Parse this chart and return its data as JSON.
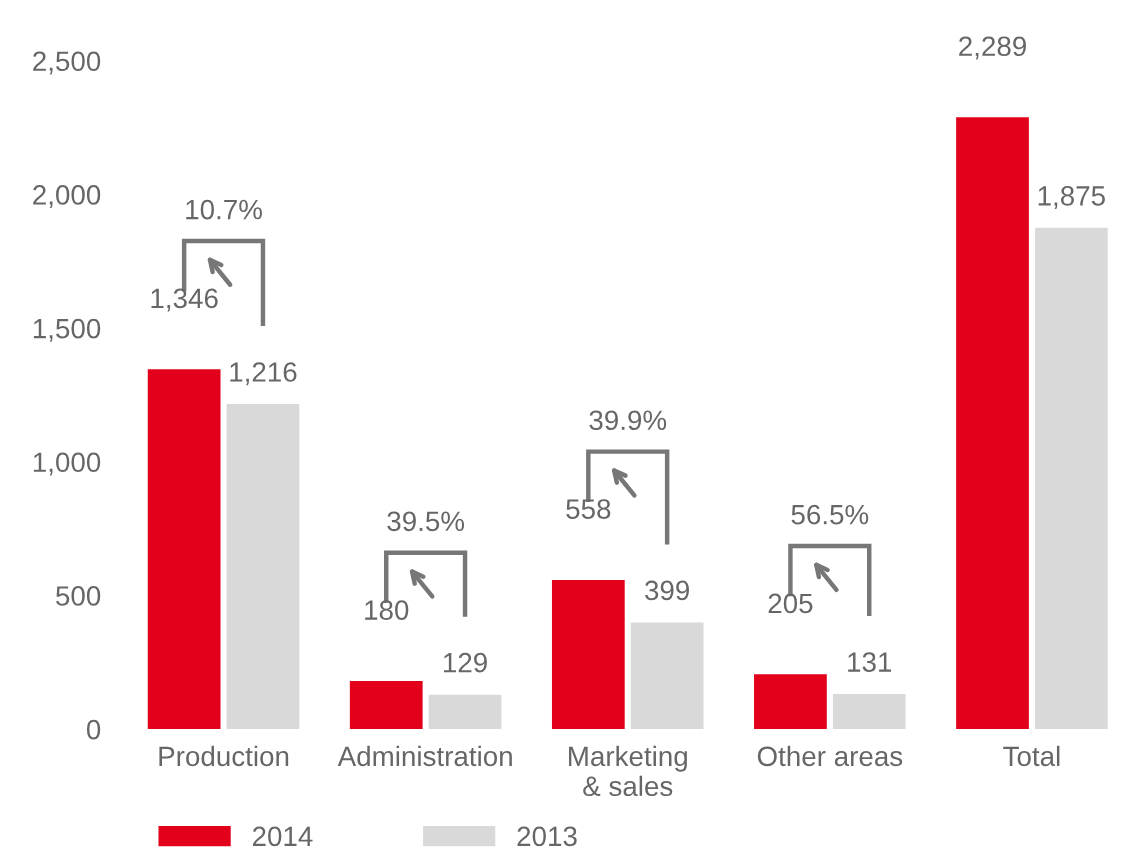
{
  "chart_data": {
    "type": "bar",
    "categories": [
      "Production",
      "Administration",
      "Marketing\n& sales",
      "Other areas",
      "Total"
    ],
    "series": [
      {
        "name": "2014",
        "color": "#e2001a",
        "values": [
          1346,
          180,
          558,
          205,
          2289
        ],
        "value_labels": [
          "1,346",
          "180",
          "558",
          "205",
          "2,289"
        ]
      },
      {
        "name": "2013",
        "color": "#d9d9d9",
        "values": [
          1216,
          129,
          399,
          131,
          1875
        ],
        "value_labels": [
          "1,216",
          "129",
          "399",
          "131",
          "1,875"
        ]
      }
    ],
    "ylim": [
      0,
      2500
    ],
    "yticks": [
      {
        "value": 0,
        "label": "0"
      },
      {
        "value": 500,
        "label": "500"
      },
      {
        "value": 1000,
        "label": "1,000"
      },
      {
        "value": 1500,
        "label": "1,500"
      },
      {
        "value": 2000,
        "label": "2,000"
      },
      {
        "value": 2500,
        "label": "2,500"
      }
    ],
    "grid": false,
    "legend": "bottom left",
    "annotations": [
      "10.7%",
      "39.5%",
      "39.9%",
      "56.5%"
    ]
  }
}
